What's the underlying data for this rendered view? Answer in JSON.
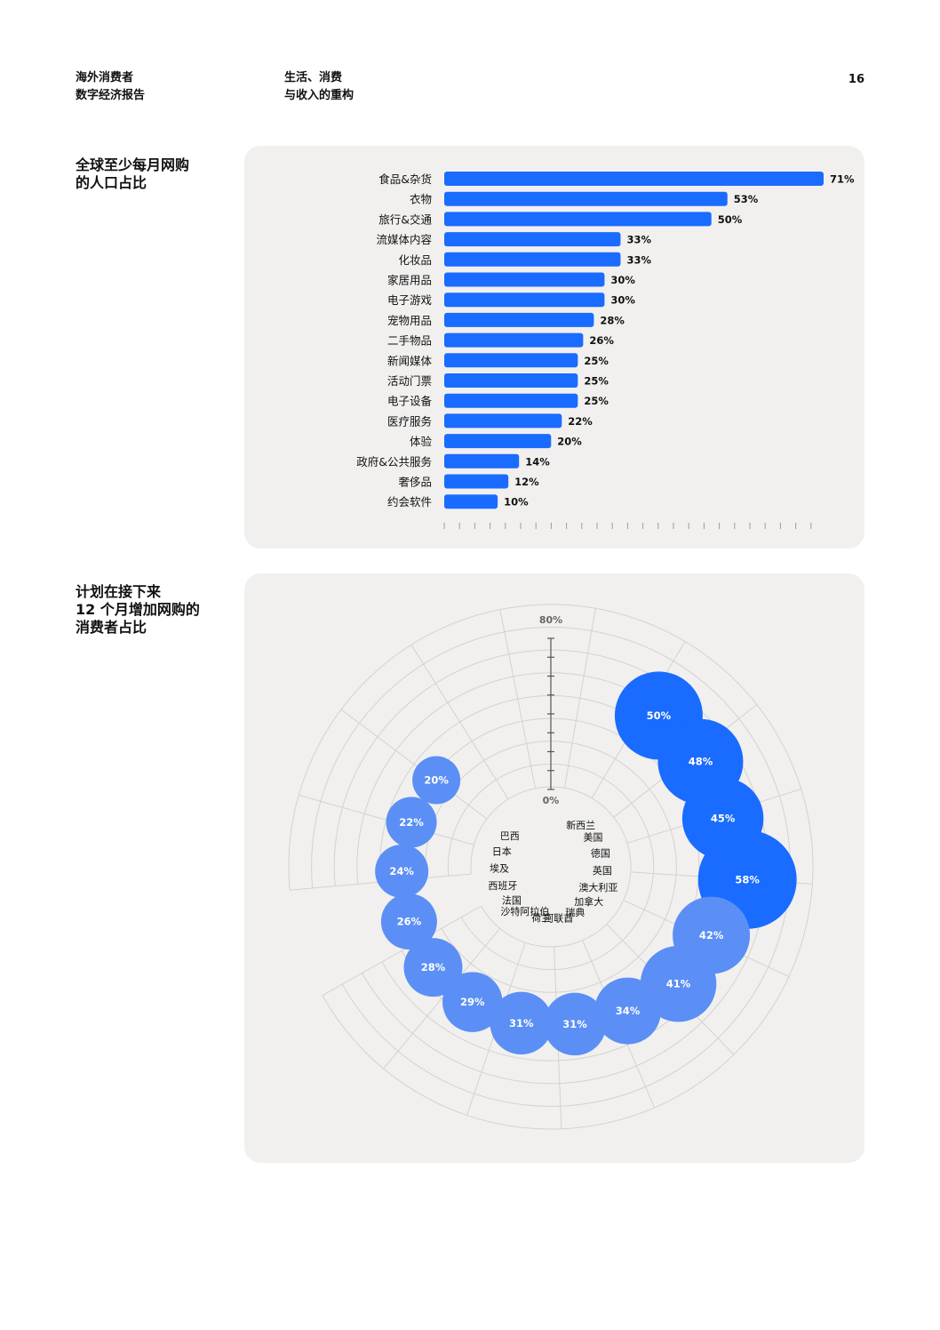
{
  "header": {
    "report_line1": "海外消费者",
    "report_line2": "数字经济报告",
    "chapter_line1": "生活、消费",
    "chapter_line2": "与收入的重构",
    "page_number": "16"
  },
  "sections": {
    "bar_title_line1": "全球至少每月网购",
    "bar_title_line2": "的人口占比",
    "radial_title_line1": "计划在接下来",
    "radial_title_line2": "12 个月增加网购的",
    "radial_title_line3": "消费者占比"
  },
  "colors": {
    "bar": "#1a6bff",
    "bubble_strong": "#1a6bff",
    "bubble_light": "#5b8ff5",
    "panel_bg": "#f1f0ef",
    "grid": "#d3d2d0"
  },
  "chart_data": [
    {
      "type": "bar",
      "orientation": "horizontal",
      "categories": [
        "食品&杂货",
        "衣物",
        "旅行&交通",
        "流媒体内容",
        "化妆品",
        "家居用品",
        "电子游戏",
        "宠物用品",
        "二手物品",
        "新闻媒体",
        "活动门票",
        "电子设备",
        "医疗服务",
        "体验",
        "政府&公共服务",
        "奢侈品",
        "约会软件"
      ],
      "values": [
        71,
        53,
        50,
        33,
        33,
        30,
        30,
        28,
        26,
        25,
        25,
        25,
        22,
        20,
        14,
        12,
        10
      ],
      "value_labels": [
        "71%",
        "53%",
        "50%",
        "33%",
        "33%",
        "30%",
        "30%",
        "28%",
        "26%",
        "25%",
        "25%",
        "25%",
        "22%",
        "20%",
        "14%",
        "12%",
        "10%"
      ],
      "xlim": [
        0,
        72
      ],
      "grid": false
    },
    {
      "type": "radial_bubble",
      "axis_labels": [
        "0%",
        "80%"
      ],
      "rlim": [
        0,
        80
      ],
      "countries": [
        "新西兰",
        "美国",
        "德国",
        "英国",
        "澳大利亚",
        "加拿大",
        "瑞典",
        "阿联酋",
        "荷兰",
        "沙特阿拉伯",
        "法国",
        "西班牙",
        "埃及",
        "日本",
        "巴西"
      ],
      "values": [
        50,
        48,
        45,
        58,
        42,
        41,
        34,
        31,
        31,
        29,
        28,
        26,
        24,
        22,
        20
      ],
      "value_labels": [
        "50%",
        "48%",
        "45%",
        "58%",
        "42%",
        "41%",
        "34%",
        "31%",
        "31%",
        "29%",
        "28%",
        "26%",
        "24%",
        "22%",
        "20%"
      ],
      "highlighted": [
        true,
        true,
        true,
        true,
        false,
        false,
        false,
        false,
        false,
        false,
        false,
        false,
        false,
        false,
        false
      ]
    }
  ]
}
